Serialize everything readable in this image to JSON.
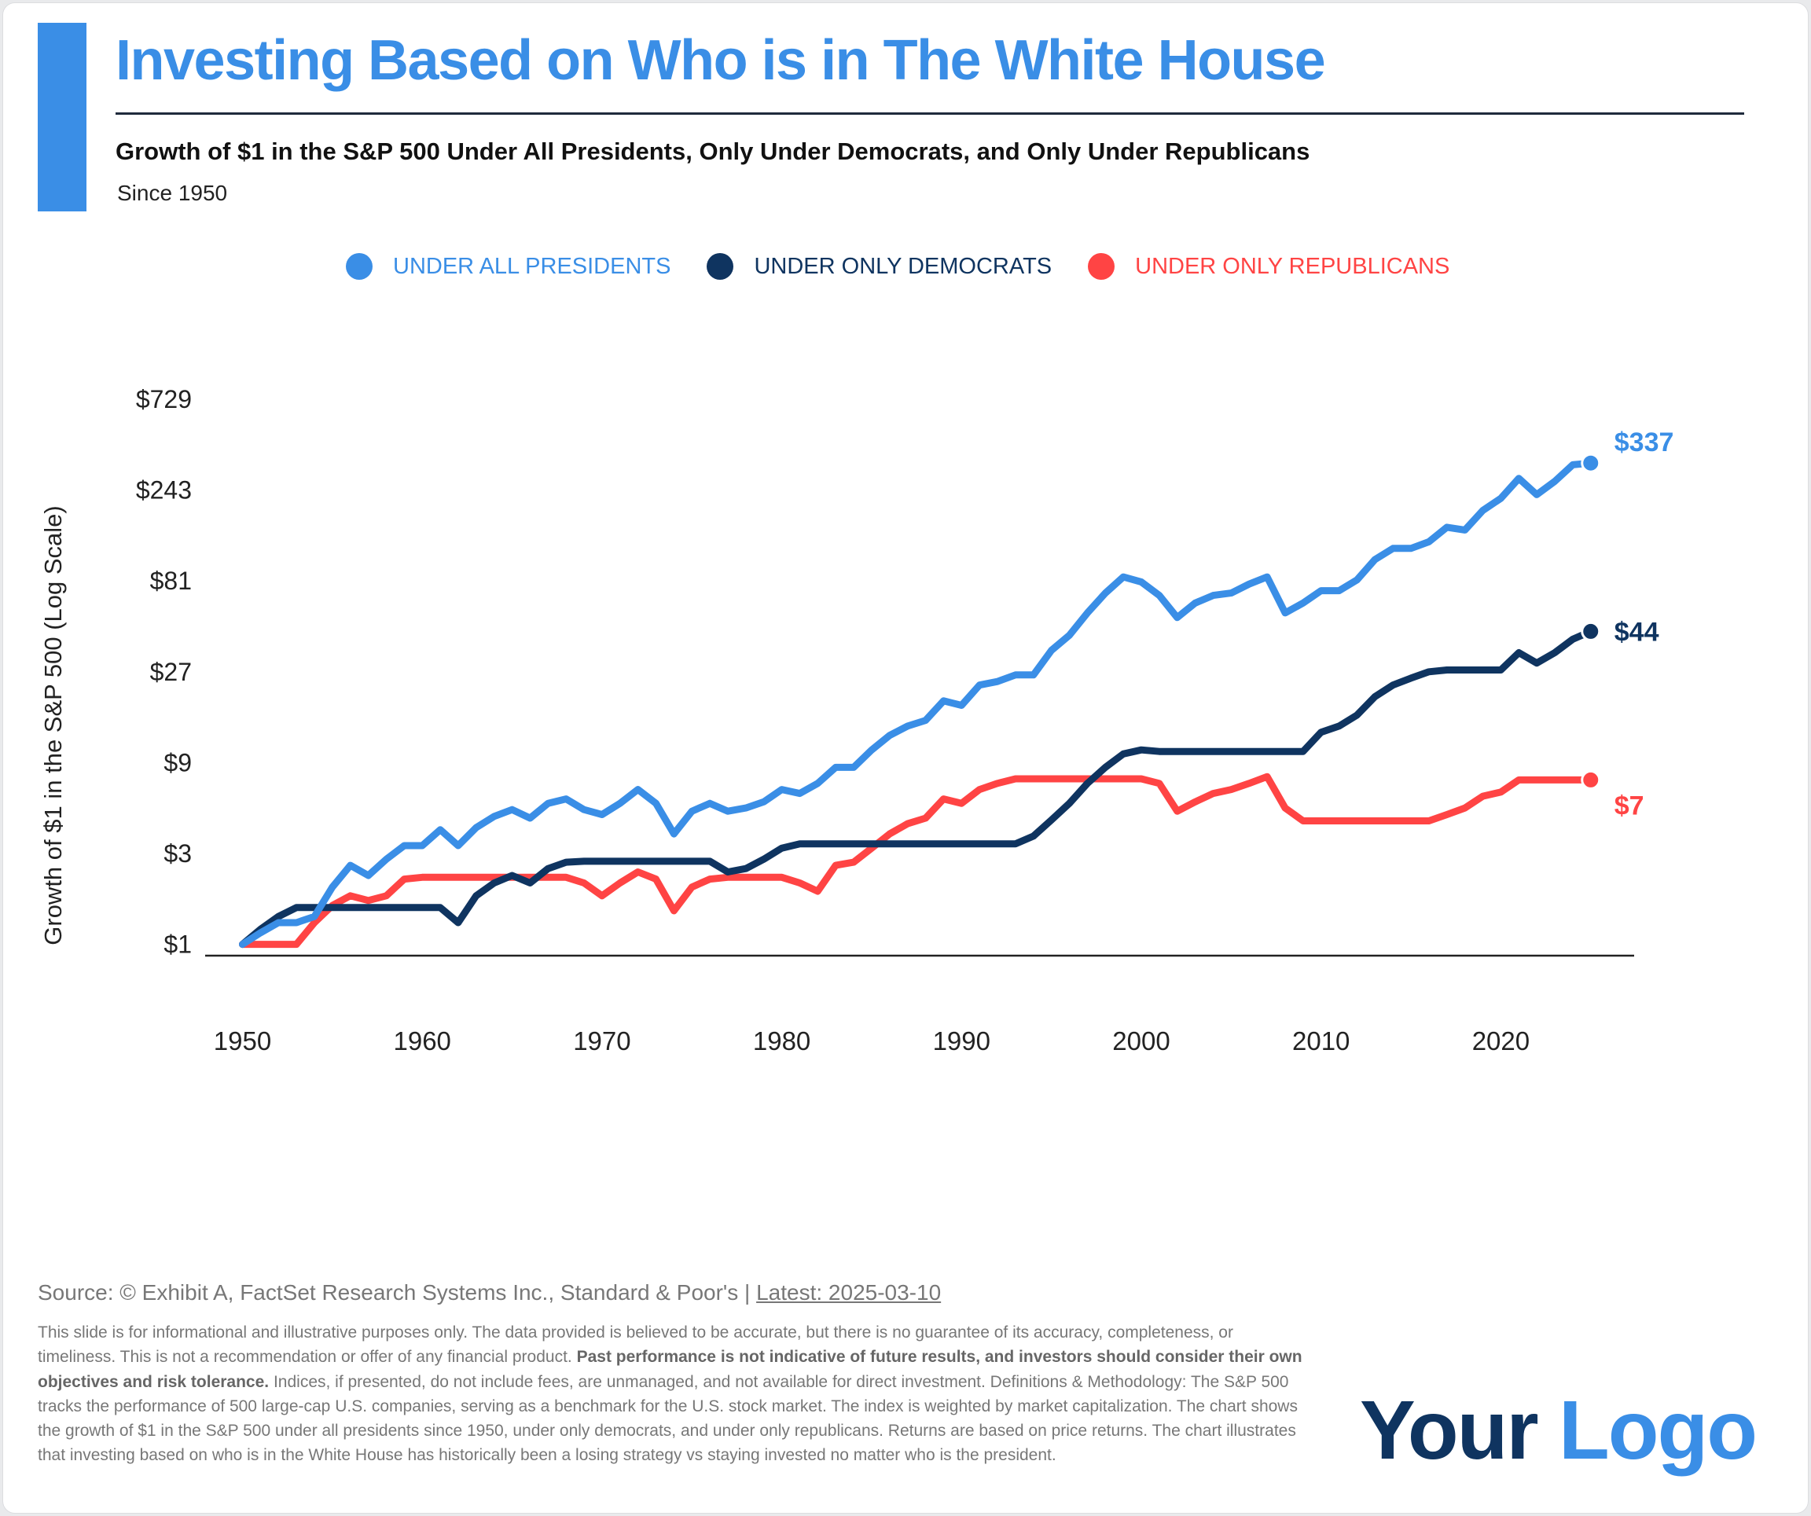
{
  "header": {
    "title": "Investing Based on Who is in The White House",
    "subtitle": "Growth of $1 in the S&P 500 Under All Presidents, Only Under Democrats, and Only Under Republicans",
    "since": "Since 1950"
  },
  "colors": {
    "all": "#3a8ee6",
    "democrats": "#0f3460",
    "republicans": "#ff4444",
    "accent": "#3a8ee6"
  },
  "chart_data": {
    "type": "line",
    "title": "",
    "xlabel": "",
    "ylabel": "Growth of $1 in the S&P 500 (Log Scale)",
    "yscale": "log",
    "ylim": [
      1,
      729
    ],
    "xlim": [
      1950,
      2025
    ],
    "yticks": [
      1,
      3,
      9,
      27,
      81,
      243,
      729
    ],
    "ytick_labels": [
      "$1",
      "$3",
      "$9",
      "$27",
      "$81",
      "$243",
      "$729"
    ],
    "xticks": [
      1950,
      1960,
      1970,
      1980,
      1990,
      2000,
      2010,
      2020
    ],
    "xtick_labels": [
      "1950",
      "1960",
      "1970",
      "1980",
      "1990",
      "2000",
      "2010",
      "2020"
    ],
    "grid": false,
    "legend_position": "top",
    "x": [
      1950,
      1951,
      1952,
      1953,
      1954,
      1955,
      1956,
      1957,
      1958,
      1959,
      1960,
      1961,
      1962,
      1963,
      1964,
      1965,
      1966,
      1967,
      1968,
      1969,
      1970,
      1971,
      1972,
      1973,
      1974,
      1975,
      1976,
      1977,
      1978,
      1979,
      1980,
      1981,
      1982,
      1983,
      1984,
      1985,
      1986,
      1987,
      1988,
      1989,
      1990,
      1991,
      1992,
      1993,
      1994,
      1995,
      1996,
      1997,
      1998,
      1999,
      2000,
      2001,
      2002,
      2003,
      2004,
      2005,
      2006,
      2007,
      2008,
      2009,
      2010,
      2011,
      2012,
      2013,
      2014,
      2015,
      2016,
      2017,
      2018,
      2019,
      2020,
      2021,
      2022,
      2023,
      2024,
      2025
    ],
    "series": [
      {
        "name": "UNDER ALL PRESIDENTS",
        "end_label": "$337",
        "values": [
          1,
          1.15,
          1.3,
          1.3,
          1.4,
          2.0,
          2.6,
          2.3,
          2.8,
          3.3,
          3.3,
          4.0,
          3.3,
          4.1,
          4.7,
          5.1,
          4.6,
          5.5,
          5.8,
          5.1,
          4.8,
          5.5,
          6.5,
          5.5,
          3.8,
          5.0,
          5.5,
          5.0,
          5.2,
          5.6,
          6.5,
          6.2,
          7.0,
          8.5,
          8.5,
          10.5,
          12.5,
          14,
          15,
          19,
          18,
          23,
          24,
          26,
          26,
          35,
          42,
          55,
          70,
          85,
          80,
          68,
          52,
          62,
          68,
          70,
          78,
          85,
          55,
          62,
          72,
          72,
          82,
          105,
          120,
          120,
          130,
          155,
          150,
          190,
          220,
          280,
          230,
          270,
          330,
          337
        ]
      },
      {
        "name": "UNDER ONLY DEMOCRATS",
        "end_label": "$44",
        "values": [
          1,
          1.2,
          1.4,
          1.56,
          1.56,
          1.56,
          1.56,
          1.56,
          1.56,
          1.56,
          1.56,
          1.56,
          1.3,
          1.8,
          2.1,
          2.3,
          2.1,
          2.5,
          2.7,
          2.73,
          2.73,
          2.73,
          2.73,
          2.73,
          2.73,
          2.73,
          2.73,
          2.4,
          2.5,
          2.8,
          3.2,
          3.37,
          3.37,
          3.37,
          3.37,
          3.37,
          3.37,
          3.37,
          3.37,
          3.37,
          3.37,
          3.37,
          3.37,
          3.37,
          3.7,
          4.5,
          5.5,
          7,
          8.5,
          10,
          10.5,
          10.3,
          10.3,
          10.3,
          10.3,
          10.3,
          10.3,
          10.3,
          10.3,
          10.3,
          13,
          14,
          16,
          20,
          23,
          25,
          27,
          27.6,
          27.6,
          27.6,
          27.6,
          34,
          30,
          34,
          40,
          44
        ]
      },
      {
        "name": "UNDER ONLY REPUBLICANS",
        "end_label": "$7",
        "values": [
          1,
          1,
          1,
          1,
          1.3,
          1.6,
          1.8,
          1.7,
          1.8,
          2.2,
          2.25,
          2.25,
          2.25,
          2.25,
          2.25,
          2.25,
          2.25,
          2.25,
          2.25,
          2.1,
          1.8,
          2.1,
          2.4,
          2.2,
          1.5,
          2.0,
          2.2,
          2.25,
          2.25,
          2.25,
          2.25,
          2.1,
          1.9,
          2.6,
          2.7,
          3.2,
          3.8,
          4.3,
          4.6,
          5.8,
          5.5,
          6.5,
          7,
          7.4,
          7.4,
          7.4,
          7.4,
          7.4,
          7.4,
          7.4,
          7.4,
          7,
          5.0,
          5.6,
          6.2,
          6.5,
          7.0,
          7.6,
          5.2,
          4.45,
          4.45,
          4.45,
          4.45,
          4.45,
          4.45,
          4.45,
          4.45,
          4.8,
          5.2,
          6.0,
          6.3,
          7.3,
          7.3,
          7.3,
          7.3,
          7.3
        ]
      }
    ]
  },
  "footer": {
    "source": "Source: © Exhibit A, FactSet Research Systems Inc., Standard & Poor's |",
    "latest": "Latest: 2025-03-10",
    "disclaimer_1": "This slide is for informational and illustrative purposes only. The data provided is believed to be accurate, but there is no guarantee of its accuracy, completeness, or timeliness. This is not a recommendation or offer of any financial product. ",
    "disclaimer_bold": "Past performance is not indicative of future results, and investors should consider their own objectives and risk tolerance.",
    "disclaimer_2": " Indices, if presented, do not include fees, are unmanaged, and not available for direct investment. Definitions & Methodology: The S&P 500 tracks the performance of 500 large-cap U.S. companies, serving as a benchmark for the U.S. stock market. The index is weighted by market capitalization. The chart shows the growth of $1 in the S&P 500 under all presidents since 1950, under only democrats, and under only republicans. Returns are based on price returns. The chart illustrates that investing based on who is in the White House has historically been a losing strategy vs staying invested no matter who is the president."
  },
  "logo": {
    "word1": "Your",
    "word2": "Logo"
  }
}
